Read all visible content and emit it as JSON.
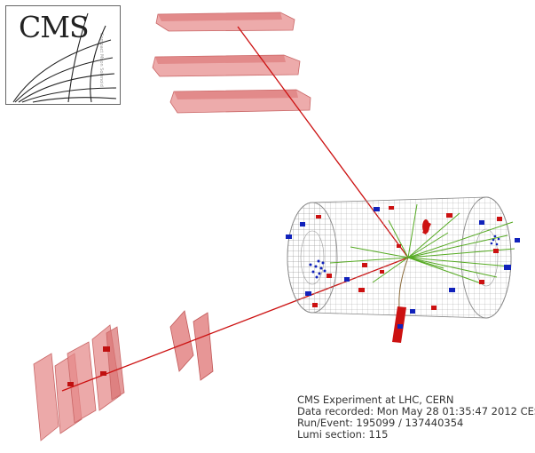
{
  "logo": {
    "text": "CMS",
    "small_text": "Compact Muon Solenoid"
  },
  "info": {
    "line1": "CMS Experiment at LHC, CERN",
    "line2": "Data recorded: Mon May 28 01:35:47 2012 CES",
    "line3": "Run/Event: 195099 / 137440354",
    "line4": "Lumi section: 115"
  },
  "colors": {
    "muon_chamber": "#e58888",
    "muon_track": "#cc1111",
    "jet_track": "#55aa22",
    "ecal_hit": "#cc1111",
    "hcal_hit": "#1122bb",
    "detector_mesh": "#999999"
  }
}
